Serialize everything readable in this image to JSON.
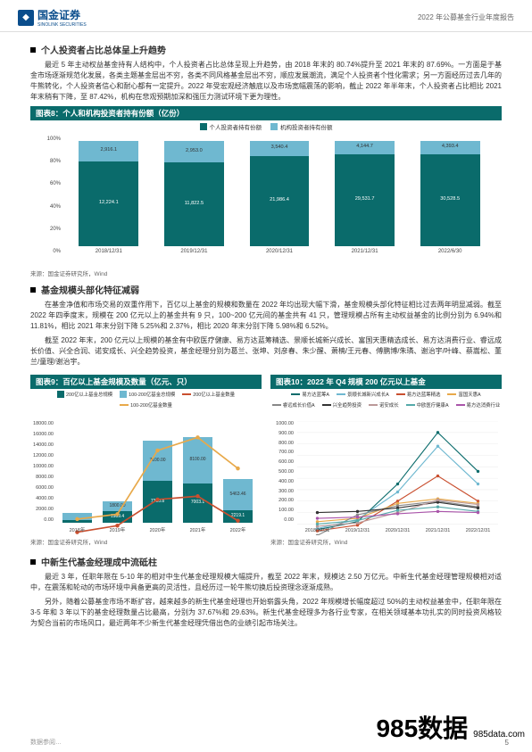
{
  "header": {
    "company": "国金证券",
    "company_en": "SINOLINK SECURITIES",
    "report_title": "2022 年公募基金行业年度报告"
  },
  "section1": {
    "heading": "个人投资者占比总体呈上升趋势",
    "para": "最近 5 年主动权益基金持有人结构中，个人投资者占比总体呈现上升趋势，由 2018 年末的 80.74%提升至 2021 年末的 87.69%。一方面是于基金市场逐渐规范化发展，各类主题基金层出不穷，各类不同风格基金层出不穷，顺应发展潮流，满足个人投资者个性化需求；另一方面经历过去几年的牛熊转化，个人投资者信心和耐心都有一定提升。2022 年受宏观经济触底以及市场宽幅震荡的影响，截止 2022 年半年末，个人投资者占比相比 2021 年末稍有下降，至 87.42%，机构在悲观预期加深和强压力测试环境下更为理性。"
  },
  "chart8": {
    "title": "图表8：个人和机构投资者持有份额（亿份）",
    "type": "stacked-bar",
    "legend": [
      {
        "name": "个人投资者持有份额",
        "color": "#0a6b6b"
      },
      {
        "name": "机构投资者持有份额",
        "color": "#6fb8d0"
      }
    ],
    "y_ticks": [
      "100%",
      "80%",
      "60%",
      "40%",
      "20%",
      "0%"
    ],
    "categories": [
      "2018/12/31",
      "2019/12/31",
      "2020/12/31",
      "2021/12/31",
      "2022/6/30"
    ],
    "series_personal": [
      12224.1,
      11822.5,
      21986.4,
      29531.7,
      30528.5
    ],
    "series_personal_pct": [
      80.74,
      80.0,
      86.0,
      87.69,
      87.42
    ],
    "series_inst": [
      2916.1,
      2953.0,
      3540.4,
      4144.7,
      4393.4
    ],
    "bar_color_bottom": "#0a6b6b",
    "bar_color_top": "#6fb8d0",
    "source": "来源：国金证券研究所，Wind"
  },
  "section2": {
    "heading": "基金规模头部化特征减弱",
    "para1": "在基金净值和市场交易的双重作用下，百亿以上基金的规模和数量在 2022 年均出现大幅下滑，基金规模头部化特征相比过去两年明显减弱。截至 2022 年四季度末，规模在 200 亿元以上的基金共有 9 只，100~200 亿元间的基金共有 41 只，管理规模占所有主动权益基金的比例分别为 6.94%和 11.81%，相比 2021 年末分别下降 5.25%和 2.37%，相比 2020 年末分别下降 5.98%和 6.52%。",
    "para2": "截至 2022 年末，200 亿元以上规模的基金有中欧医疗健康、易方达蓝筹精选、景顺长城新兴成长、富国天惠精选成长、易方达消费行业、睿远成长价值、兴全合润、诺安成长、兴全趋势投资，基金经理分别为葛兰、张坤、刘彦春、朱少醒、萧楠/王元春、傅鹏博/朱璘、谢治宇/叶峰、蔡嵩松、董兰/童理/谢治宇。"
  },
  "chart9": {
    "title": "图表9：百亿以上基金规模及数量（亿元、只）",
    "type": "stacked-bar-line",
    "legend": [
      {
        "name": "200亿以上基金总规模",
        "color": "#0a6b6b",
        "kind": "bar"
      },
      {
        "name": "100-200亿基金总规模",
        "color": "#6fb8d0",
        "kind": "bar"
      },
      {
        "name": "200亿以上基金数量",
        "color": "#c94f2f",
        "kind": "line"
      },
      {
        "name": "100-200亿基金数量",
        "color": "#e8a94a",
        "kind": "line"
      }
    ],
    "y_ticks": [
      "18000.00",
      "16000.00",
      "14000.00",
      "12000.00",
      "10000.00",
      "8000.00",
      "6000.00",
      "4000.00",
      "2000.00",
      "0.00"
    ],
    "categories": [
      "2018年",
      "2019年",
      "2020年",
      "2021年",
      "2022年"
    ],
    "bar_bottom": [
      500,
      1989.4,
      7360.84,
      7003.1,
      2219.1
    ],
    "bar_top": [
      1318.1,
      1800,
      7100,
      8100,
      5463.46
    ],
    "line1": [
      2,
      6,
      22,
      24,
      9
    ],
    "line2": [
      10,
      13,
      52,
      60,
      41
    ],
    "colors": {
      "bottom": "#0a6b6b",
      "top": "#6fb8d0",
      "line1": "#c94f2f",
      "line2": "#e8a94a"
    },
    "source": "来源：国金证券研究所，Wind"
  },
  "chart10": {
    "title": "图表10：2022 年 Q4 规模 200 亿元以上基金",
    "type": "line",
    "legend": [
      {
        "name": "易方达蓝筹A",
        "color": "#0a6b6b"
      },
      {
        "name": "景顺长城新兴成长A",
        "color": "#6fb8d0"
      },
      {
        "name": "易方达蓝筹精选",
        "color": "#c94f2f"
      },
      {
        "name": "富国天惠A",
        "color": "#e8a94a"
      },
      {
        "name": "睿远成长价值A",
        "color": "#888"
      },
      {
        "name": "兴全趋势投资",
        "color": "#333"
      },
      {
        "name": "诺安成长",
        "color": "#b99"
      },
      {
        "name": "中欧医疗健康A",
        "color": "#5aa"
      },
      {
        "name": "易方达消费行业",
        "color": "#a5a"
      }
    ],
    "y_ticks": [
      "1000.00",
      "900.00",
      "800.00",
      "700.00",
      "600.00",
      "500.00",
      "400.00",
      "300.00",
      "200.00",
      "100.00",
      "0.00"
    ],
    "x_ticks": [
      "2018/12/31",
      "2019/12/31",
      "2020/12/31",
      "2021/12/31",
      "2022/12/31"
    ],
    "source": "来源：国金证券研究所，Wind"
  },
  "section3": {
    "heading": "中新生代基金经理成中流砥柱",
    "para1": "最近 3 年，任职年限在 5-10 年的相对中生代基金经理规模大幅提升，截至 2022 年末，规模达 2.50 万亿元。中新生代基金经理管理规模相对适中，在震荡和轮动的市场环境中具备更高的灵活性，且经历过一轮牛熊切换后投资理念逐渐成熟。",
    "para2": "另外，随着公募基金市场不断扩容，越来越多的新生代基金经理也开始崭露头角，2022 年规模增长幅度超过 50%的主动权益基金中，任职年限在 3-5 年和 3 年以下的基金经理数量占比最高，分别为 37.67%和 29.63%。新生代基金经理多为各行业专家，在相关领域基本功扎实的同时投资风格较为契合当前的市场风口，最近两年不少新生代基金经理凭借出色的业绩引起市场关注。"
  },
  "footer": {
    "data_source": "数据参阅…",
    "page": "5",
    "watermark": "985数据",
    "watermark_url": "985data.com"
  }
}
